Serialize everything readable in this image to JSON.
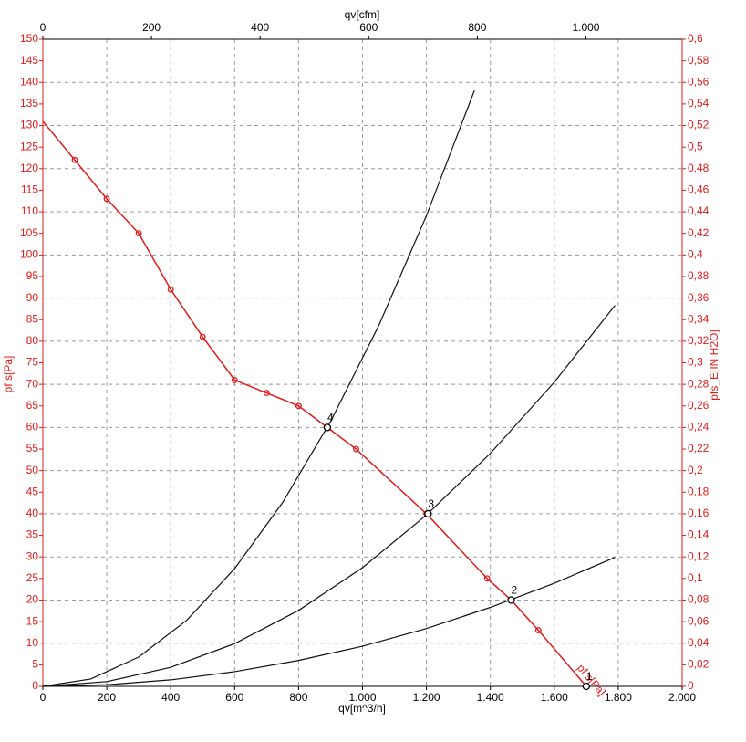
{
  "chart_data": {
    "type": "line",
    "x_label": "qv[m^3/h]",
    "x2_label": "qv[cfm]",
    "y_label": "pf s[Pa]",
    "y2_label": "pfs_E[IN H2O]",
    "xlim": [
      0,
      2000
    ],
    "xticks": [
      0,
      200,
      400,
      600,
      800,
      {
        "value": 1000,
        "label": "1.000"
      },
      {
        "value": 1200,
        "label": "1.200"
      },
      {
        "value": 1400,
        "label": "1.400"
      },
      {
        "value": 1600,
        "label": "1.600"
      },
      {
        "value": 1800,
        "label": "1.800"
      },
      {
        "value": 2000,
        "label": "2.000"
      }
    ],
    "x2lim": [
      0,
      1177.2
    ],
    "x2ticks": [
      0,
      200,
      400,
      600,
      800,
      {
        "value": 1000,
        "label": "1.000"
      }
    ],
    "ylim": [
      0,
      150
    ],
    "yticks": [
      0,
      5,
      10,
      15,
      20,
      25,
      30,
      35,
      40,
      45,
      50,
      55,
      60,
      65,
      70,
      75,
      80,
      85,
      90,
      95,
      100,
      105,
      110,
      115,
      120,
      125,
      130,
      135,
      140,
      145,
      150
    ],
    "y2lim": [
      0,
      0.6
    ],
    "y2ticks": [
      0,
      {
        "value": 0.02,
        "label": "0,02"
      },
      {
        "value": 0.04,
        "label": "0,04"
      },
      {
        "value": 0.06,
        "label": "0,06"
      },
      {
        "value": 0.08,
        "label": "0,08"
      },
      {
        "value": 0.1,
        "label": "0,1"
      },
      {
        "value": 0.12,
        "label": "0,12"
      },
      {
        "value": 0.14,
        "label": "0,14"
      },
      {
        "value": 0.16,
        "label": "0,16"
      },
      {
        "value": 0.18,
        "label": "0,18"
      },
      {
        "value": 0.2,
        "label": "0,2"
      },
      {
        "value": 0.22,
        "label": "0,22"
      },
      {
        "value": 0.24,
        "label": "0,24"
      },
      {
        "value": 0.26,
        "label": "0,26"
      },
      {
        "value": 0.28,
        "label": "0,28"
      },
      {
        "value": 0.3,
        "label": "0,3"
      },
      {
        "value": 0.32,
        "label": "0,32"
      },
      {
        "value": 0.34,
        "label": "0,34"
      },
      {
        "value": 0.36,
        "label": "0,36"
      },
      {
        "value": 0.38,
        "label": "0,38"
      },
      {
        "value": 0.4,
        "label": "0,4"
      },
      {
        "value": 0.42,
        "label": "0,42"
      },
      {
        "value": 0.44,
        "label": "0,44"
      },
      {
        "value": 0.46,
        "label": "0,46"
      },
      {
        "value": 0.48,
        "label": "0,48"
      },
      {
        "value": 0.5,
        "label": "0,5"
      },
      {
        "value": 0.52,
        "label": "0,52"
      },
      {
        "value": 0.54,
        "label": "0,54"
      },
      {
        "value": 0.56,
        "label": "0,56"
      },
      {
        "value": 0.58,
        "label": "0,58"
      },
      {
        "value": 0.6,
        "label": "0,6"
      }
    ],
    "grid": true,
    "series": [
      {
        "name": "pf s[Pa]",
        "color": "#e21a1a",
        "x": [
          0,
          100,
          200,
          300,
          400,
          500,
          600,
          700,
          800,
          890,
          980,
          1200,
          1390,
          1465,
          1550,
          1700
        ],
        "values": [
          131,
          122,
          113,
          105,
          92,
          81,
          71,
          68,
          65,
          60,
          55,
          40,
          25,
          20,
          13,
          0
        ]
      },
      {
        "color": "#111111",
        "x": [
          0,
          150,
          300,
          450,
          600,
          750,
          900,
          1050,
          1200,
          1350
        ],
        "values": [
          0,
          1.7,
          6.8,
          15.3,
          27.3,
          42.6,
          61.4,
          83.5,
          109.1,
          138.1
        ]
      },
      {
        "color": "#111111",
        "x": [
          0,
          200,
          400,
          600,
          800,
          1000,
          1200,
          1400,
          1600,
          1790
        ],
        "values": [
          0,
          1.1,
          4.4,
          9.9,
          17.6,
          27.5,
          39.7,
          54.0,
          70.5,
          88.3
        ]
      },
      {
        "color": "#111111",
        "x": [
          0,
          200,
          400,
          600,
          800,
          1000,
          1200,
          1400,
          1600,
          1790
        ],
        "values": [
          0,
          0.37,
          1.5,
          3.4,
          6.0,
          9.3,
          13.4,
          18.3,
          23.9,
          29.9
        ]
      }
    ],
    "points": [
      {
        "label": "4",
        "x": 890,
        "y": 60
      },
      {
        "label": "3",
        "x": 1205,
        "y": 40
      },
      {
        "label": "2",
        "x": 1465,
        "y": 20
      },
      {
        "label": "1",
        "x": 1700,
        "y": 0
      }
    ]
  }
}
